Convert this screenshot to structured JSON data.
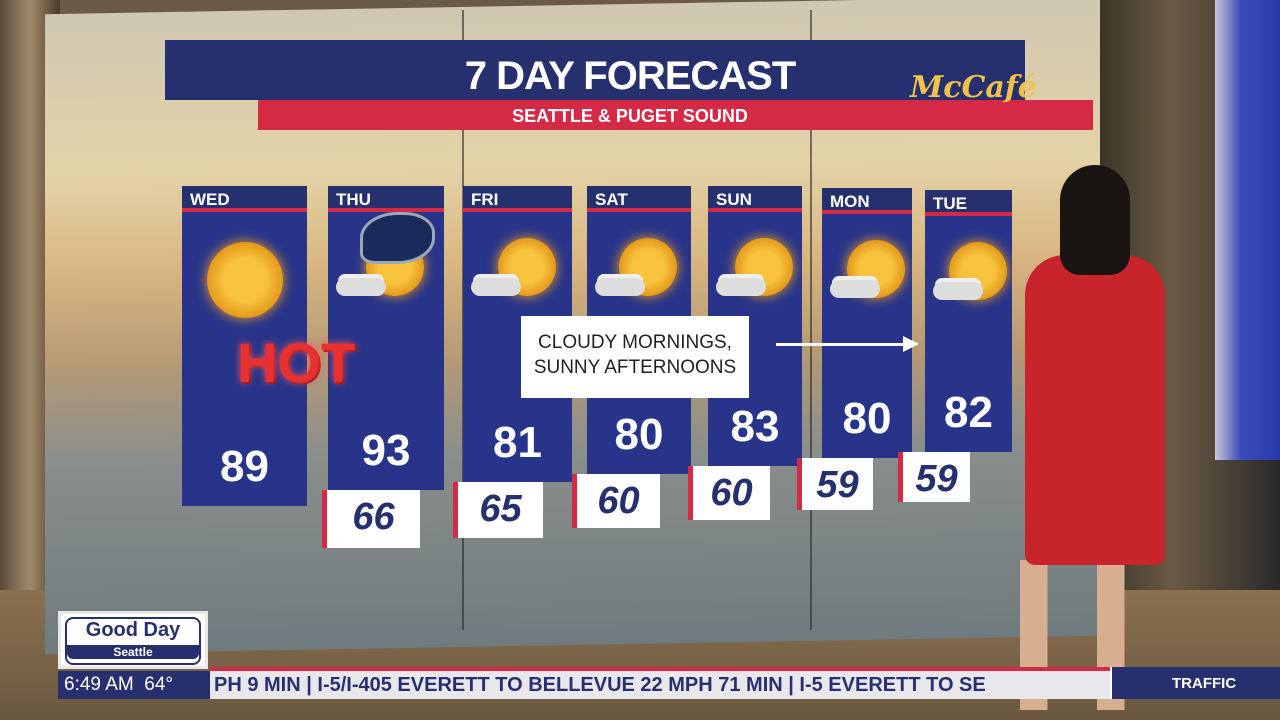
{
  "graphic": {
    "title": "7 DAY FORECAST",
    "subtitle": "SEATTLE & PUGET SOUND",
    "sponsor_logo": "McCafé"
  },
  "days": [
    {
      "name": "WED",
      "high": "89",
      "low": null,
      "icon": "sun",
      "badge": "HOT"
    },
    {
      "name": "THU",
      "high": "93",
      "low": "66",
      "icon": "sun-with-cloud",
      "badge": "seahawks-logo"
    },
    {
      "name": "FRI",
      "high": "81",
      "low": "65",
      "icon": "sun-with-cloud"
    },
    {
      "name": "SAT",
      "high": "80",
      "low": "60",
      "icon": "sun-with-cloud"
    },
    {
      "name": "SUN",
      "high": "83",
      "low": "60",
      "icon": "sun-with-cloud"
    },
    {
      "name": "MON",
      "high": "80",
      "low": "59",
      "icon": "sun-with-cloud"
    },
    {
      "name": "TUE",
      "high": "82",
      "low": "59",
      "icon": "sun-with-cloud"
    }
  ],
  "callout": {
    "line1": "CLOUDY MORNINGS,",
    "line2": "SUNNY AFTERNOONS"
  },
  "hot_label": "HOT",
  "station_bug": {
    "line1": "Good Day",
    "line2": "Seattle"
  },
  "lower_third": {
    "time": "6:49 AM",
    "temp": "64°",
    "ticker": "PH 9 MIN | I-5/I-405 EVERETT TO BELLEVUE 22 MPH 71 MIN | I-5 EVERETT TO SE",
    "section": "TRAFFIC"
  },
  "colors": {
    "navy": "#27306e",
    "red": "#d42a45",
    "sun": "#f7c23c"
  }
}
